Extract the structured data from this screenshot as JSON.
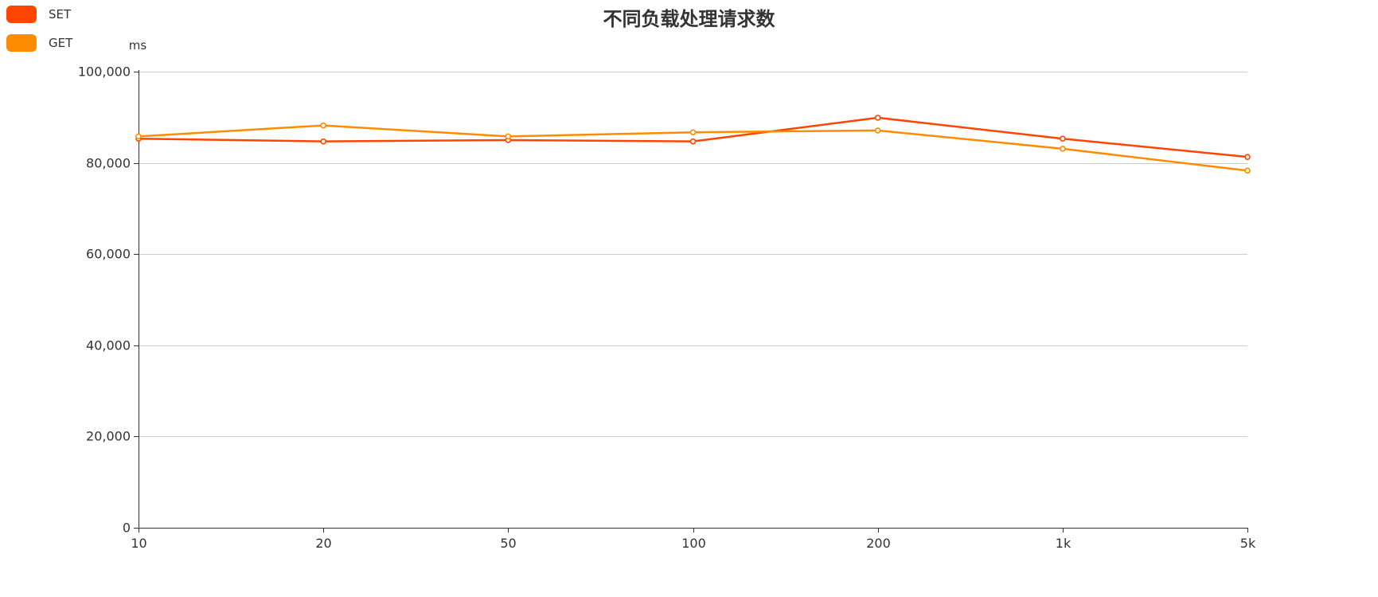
{
  "chart_data": {
    "type": "line",
    "title": "不同负载处理请求数",
    "xlabel": "",
    "ylabel": "ms",
    "categories": [
      "10",
      "20",
      "50",
      "100",
      "200",
      "1k",
      "5k"
    ],
    "ylim": [
      0,
      100000
    ],
    "yticks": [
      0,
      20000,
      40000,
      60000,
      80000,
      100000
    ],
    "ytick_labels": [
      "0",
      "20,000",
      "40,000",
      "60,000",
      "80,000",
      "100,000"
    ],
    "grid": true,
    "legend_position": "top-left",
    "series": [
      {
        "name": "SET",
        "color": "#ff4500",
        "values": [
          85300,
          84700,
          85000,
          84700,
          89900,
          85300,
          81300
        ]
      },
      {
        "name": "GET",
        "color": "#ff8c00",
        "values": [
          85800,
          88200,
          85800,
          86700,
          87100,
          83100,
          78300
        ]
      }
    ]
  }
}
